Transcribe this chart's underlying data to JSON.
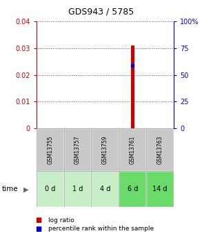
{
  "title": "GDS943 / 5785",
  "samples": [
    "GSM13755",
    "GSM13757",
    "GSM13759",
    "GSM13761",
    "GSM13763"
  ],
  "time_labels": [
    "0 d",
    "1 d",
    "4 d",
    "6 d",
    "14 d"
  ],
  "log_ratio_values": [
    0,
    0,
    0,
    0.031,
    0
  ],
  "percentile_values": [
    0,
    0,
    0,
    58.5,
    0
  ],
  "ylim_left": [
    0,
    0.04
  ],
  "ylim_right": [
    0,
    100
  ],
  "yticks_left": [
    0,
    0.01,
    0.02,
    0.03,
    0.04
  ],
  "yticks_right": [
    0,
    25,
    50,
    75,
    100
  ],
  "ytick_labels_left": [
    "0",
    "0.01",
    "0.02",
    "0.03",
    "0.04"
  ],
  "ytick_labels_right": [
    "0",
    "25",
    "50",
    "75",
    "100%"
  ],
  "left_tick_color": "#cc0000",
  "right_tick_color": "#0000cc",
  "bar_color_log": "#cc0000",
  "bar_color_pct": "#0000cc",
  "sample_box_color": "#c8c8c8",
  "time_box_colors": [
    "#c8eec8",
    "#c8eec8",
    "#c8eec8",
    "#6ada6a",
    "#6ada6a"
  ],
  "legend_log_color": "#cc0000",
  "legend_pct_color": "#0000cc",
  "legend_log_label": "log ratio",
  "legend_pct_label": "percentile rank within the sample",
  "time_arrow_label": "time",
  "background_color": "#ffffff",
  "dotted_line_color": "#555555",
  "bar_width": 0.12
}
